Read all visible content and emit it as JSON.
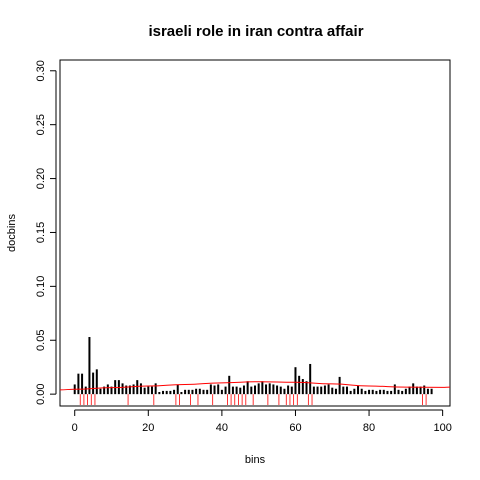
{
  "chart_data": {
    "type": "bar",
    "title": "israeli role in iran contra affair",
    "xlabel": "bins",
    "ylabel": "docbins",
    "xlim": [
      -4,
      102
    ],
    "ylim": [
      -0.011,
      0.31
    ],
    "x_ticks": [
      0,
      20,
      40,
      60,
      80,
      100
    ],
    "x_tick_labels": [
      "0",
      "20",
      "40",
      "60",
      "80",
      "100"
    ],
    "y_ticks": [
      0.0,
      0.05,
      0.1,
      0.15,
      0.2,
      0.25,
      0.3
    ],
    "y_tick_labels": [
      "0.00",
      "0.05",
      "0.10",
      "0.15",
      "0.20",
      "0.25",
      "0.30"
    ],
    "grid": false,
    "bar_color": "#000000",
    "rug_color": "#ff0000",
    "curve_color": "#ff0000",
    "series": [
      {
        "x": [
          0,
          1,
          2,
          3,
          4,
          5,
          6,
          7,
          8,
          9,
          10,
          11,
          12,
          13,
          14,
          15,
          16,
          17,
          18,
          19,
          20,
          21,
          22,
          23,
          24,
          25,
          26,
          27,
          28,
          29,
          30,
          31,
          32,
          33,
          34,
          35,
          36,
          37,
          38,
          39,
          40,
          41,
          42,
          43,
          44,
          45,
          46,
          47,
          48,
          49,
          50,
          51,
          52,
          53,
          54,
          55,
          56,
          57,
          58,
          59,
          60,
          61,
          62,
          63,
          64,
          65,
          66,
          67,
          68,
          69,
          70,
          71,
          72,
          73,
          74,
          75,
          76,
          77,
          78,
          79,
          80,
          81,
          82,
          83,
          84,
          85,
          86,
          87,
          88,
          89,
          90,
          91,
          92,
          93,
          94,
          95,
          96,
          97
        ],
        "values": [
          0.009,
          0.019,
          0.019,
          0.007,
          0.053,
          0.02,
          0.023,
          0.005,
          0.007,
          0.009,
          0.007,
          0.013,
          0.013,
          0.01,
          0.008,
          0.008,
          0.009,
          0.013,
          0.01,
          0.006,
          0.007,
          0.007,
          0.01,
          0.002,
          0.003,
          0.003,
          0.003,
          0.004,
          0.009,
          0.002,
          0.004,
          0.004,
          0.004,
          0.005,
          0.005,
          0.004,
          0.004,
          0.009,
          0.008,
          0.009,
          0.004,
          0.007,
          0.017,
          0.007,
          0.007,
          0.006,
          0.008,
          0.012,
          0.007,
          0.008,
          0.01,
          0.012,
          0.009,
          0.01,
          0.009,
          0.008,
          0.007,
          0.005,
          0.008,
          0.007,
          0.025,
          0.017,
          0.014,
          0.012,
          0.028,
          0.007,
          0.007,
          0.007,
          0.008,
          0.009,
          0.006,
          0.005,
          0.016,
          0.007,
          0.007,
          0.003,
          0.005,
          0.008,
          0.005,
          0.003,
          0.004,
          0.004,
          0.003,
          0.004,
          0.004,
          0.003,
          0.003,
          0.009,
          0.004,
          0.003,
          0.005,
          0.007,
          0.01,
          0.007,
          0.007,
          0.008,
          0.005,
          0.005
        ]
      }
    ],
    "rug_x": [
      1.5,
      2.5,
      3.5,
      4.5,
      5.5,
      14.5,
      21.5,
      27.5,
      28.5,
      31.5,
      33.5,
      37.5,
      41.5,
      42.5,
      43.5,
      44.5,
      45.5,
      46.5,
      48.5,
      52.5,
      55.5,
      57.5,
      58.5,
      59.5,
      60.5,
      63.5,
      64.5,
      94.5,
      95.5
    ],
    "curve": {
      "x": [
        -4,
        0,
        10,
        20,
        30,
        40,
        50,
        60,
        70,
        80,
        90,
        100,
        102
      ],
      "y": [
        0.004,
        0.0045,
        0.006,
        0.0075,
        0.009,
        0.0105,
        0.0115,
        0.011,
        0.0095,
        0.0075,
        0.0065,
        0.0063,
        0.0065
      ]
    }
  }
}
